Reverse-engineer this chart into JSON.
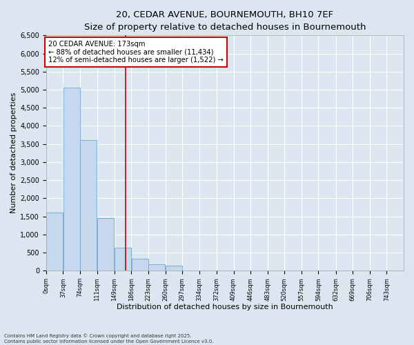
{
  "title_line1": "20, CEDAR AVENUE, BOURNEMOUTH, BH10 7EF",
  "title_line2": "Size of property relative to detached houses in Bournemouth",
  "xlabel": "Distribution of detached houses by size in Bournemouth",
  "ylabel": "Number of detached properties",
  "bar_color": "#c5d8ee",
  "bar_edge_color": "#7aadd4",
  "fig_background_color": "#dce6f0",
  "ax_background_color": "#dce6f0",
  "grid_color": "#ffffff",
  "annotation_line_color": "#cc0000",
  "annotation_box_color": "#cc0000",
  "property_value": 173,
  "annotation_text_line1": "20 CEDAR AVENUE: 173sqm",
  "annotation_text_line2": "← 88% of detached houses are smaller (11,434)",
  "annotation_text_line3": "12% of semi-detached houses are larger (1,522) →",
  "bins": [
    0,
    37,
    74,
    111,
    149,
    186,
    223,
    260,
    297,
    334,
    372,
    409,
    446,
    483,
    520,
    557,
    594,
    632,
    669,
    706,
    743
  ],
  "counts": [
    1600,
    5050,
    3600,
    1450,
    630,
    330,
    175,
    130,
    0,
    0,
    0,
    0,
    0,
    0,
    0,
    0,
    0,
    0,
    0,
    0
  ],
  "ylim": [
    0,
    6500
  ],
  "yticks": [
    0,
    500,
    1000,
    1500,
    2000,
    2500,
    3000,
    3500,
    4000,
    4500,
    5000,
    5500,
    6000,
    6500
  ],
  "footer_line1": "Contains HM Land Registry data © Crown copyright and database right 2025.",
  "footer_line2": "Contains public sector information licensed under the Open Government Licence v3.0."
}
